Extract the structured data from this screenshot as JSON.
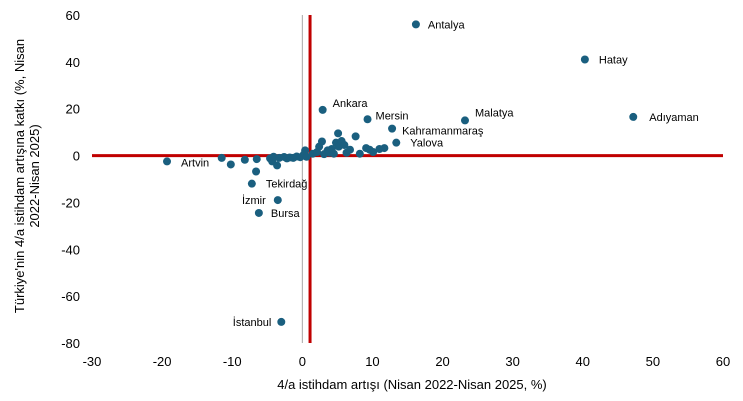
{
  "chart_data": {
    "type": "scatter",
    "xlabel": "4/a istihdam artışı (Nisan 2022-Nisan 2025, %)",
    "ylabel_line1": "Türkiye'nin 4/a istihdam artışına katkı (%, Nisan",
    "ylabel_line2": "2022-Nisan 2025)",
    "xlim": [
      -30,
      60
    ],
    "ylim": [
      -80,
      60
    ],
    "xticks": [
      -30,
      -20,
      -10,
      0,
      10,
      20,
      30,
      40,
      50,
      60
    ],
    "yticks": [
      -80,
      -60,
      -40,
      -20,
      0,
      20,
      40,
      60
    ],
    "x_ref": 1.1,
    "y_ref": 0,
    "colors": {
      "point": "#1a5f7f",
      "ref_line": "#c00000",
      "zero_axis": "#a6a6a6"
    },
    "labeled_points": [
      {
        "name": "Antalya",
        "x": 16.2,
        "y": 56
      },
      {
        "name": "Hatay",
        "x": 40.3,
        "y": 41
      },
      {
        "name": "Adıyaman",
        "x": 47.2,
        "y": 16.5
      },
      {
        "name": "Malatya",
        "x": 23.2,
        "y": 15
      },
      {
        "name": "Mersin",
        "x": 9.3,
        "y": 15.5
      },
      {
        "name": "Ankara",
        "x": 2.9,
        "y": 19.5
      },
      {
        "name": "Kahramanmaraş",
        "x": 12.8,
        "y": 11.5
      },
      {
        "name": "Yalova",
        "x": 13.4,
        "y": 5.5
      },
      {
        "name": "Artvin",
        "x": -19.3,
        "y": -2.5
      },
      {
        "name": "Tekirdağ",
        "x": -7.2,
        "y": -12
      },
      {
        "name": "İzmir",
        "x": -3.5,
        "y": -19
      },
      {
        "name": "Bursa",
        "x": -6.2,
        "y": -24.5
      },
      {
        "name": "İstanbul",
        "x": -3.0,
        "y": -71
      }
    ],
    "other_points": [
      {
        "x": -11.5,
        "y": -1
      },
      {
        "x": -10.2,
        "y": -3.8
      },
      {
        "x": -8.2,
        "y": -1.8
      },
      {
        "x": -6.6,
        "y": -6.8
      },
      {
        "x": -6.5,
        "y": -1.5
      },
      {
        "x": -4.6,
        "y": -1.2
      },
      {
        "x": -4.3,
        "y": -2.5
      },
      {
        "x": -4.1,
        "y": -0.5
      },
      {
        "x": -3.6,
        "y": -4.2
      },
      {
        "x": -3.3,
        "y": -1
      },
      {
        "x": -2.6,
        "y": -0.6
      },
      {
        "x": -2.2,
        "y": -1.2
      },
      {
        "x": -1.8,
        "y": -0.8
      },
      {
        "x": -1.3,
        "y": -1
      },
      {
        "x": -0.8,
        "y": -0.4
      },
      {
        "x": -0.3,
        "y": -0.7
      },
      {
        "x": 0.2,
        "y": 0.4
      },
      {
        "x": 0.6,
        "y": -0.5
      },
      {
        "x": 0.4,
        "y": 2.2
      },
      {
        "x": 1.5,
        "y": 0.8
      },
      {
        "x": 2.1,
        "y": 1.5
      },
      {
        "x": 2.4,
        "y": 3.8
      },
      {
        "x": 2.8,
        "y": 6
      },
      {
        "x": 3.1,
        "y": 0.6
      },
      {
        "x": 3.6,
        "y": 2.2
      },
      {
        "x": 3.9,
        "y": 1.2
      },
      {
        "x": 4.2,
        "y": 2.8
      },
      {
        "x": 4.5,
        "y": 0.8
      },
      {
        "x": 4.8,
        "y": 5.5
      },
      {
        "x": 5.1,
        "y": 9.5
      },
      {
        "x": 5.2,
        "y": 3.8
      },
      {
        "x": 5.6,
        "y": 6.2
      },
      {
        "x": 6.0,
        "y": 4.5
      },
      {
        "x": 6.3,
        "y": 1.2
      },
      {
        "x": 6.8,
        "y": 2.5
      },
      {
        "x": 7.6,
        "y": 8.2
      },
      {
        "x": 8.2,
        "y": 0.8
      },
      {
        "x": 9.1,
        "y": 3.2
      },
      {
        "x": 9.6,
        "y": 2.5
      },
      {
        "x": 10.1,
        "y": 1.5
      },
      {
        "x": 11.0,
        "y": 2.8
      },
      {
        "x": 11.7,
        "y": 3.2
      }
    ]
  }
}
